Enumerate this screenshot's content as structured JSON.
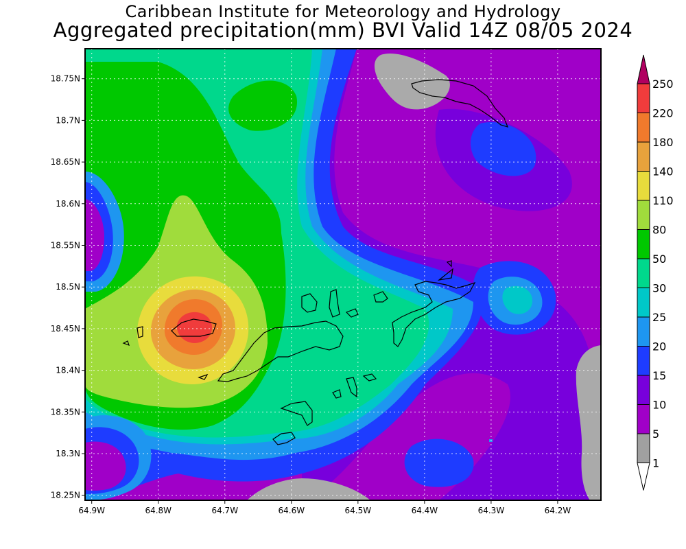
{
  "header": {
    "title_line1": "Caribbean Institute for Meteorology and Hydrology",
    "title_line2": "Aggregated precipitation(mm) BVI Valid 14Z 08/05 2024"
  },
  "axes": {
    "x_ticks": [
      "64.9W",
      "64.8W",
      "64.7W",
      "64.6W",
      "64.5W",
      "64.4W",
      "64.3W",
      "64.2W"
    ],
    "y_ticks": [
      "18.75N",
      "18.7N",
      "18.65N",
      "18.6N",
      "18.55N",
      "18.5N",
      "18.45N",
      "18.4N",
      "18.35N",
      "18.3N",
      "18.25N"
    ],
    "lon_range": [
      -64.91,
      -64.135
    ],
    "lat_range": [
      18.244,
      18.786
    ]
  },
  "colorbar": {
    "levels": [
      "250",
      "220",
      "180",
      "140",
      "110",
      "80",
      "50",
      "30",
      "25",
      "20",
      "15",
      "10",
      "5",
      "1"
    ],
    "colors": [
      "#b00060",
      "#f03c3c",
      "#f07a2c",
      "#e8a23c",
      "#e8dc3c",
      "#a0dc3c",
      "#00c800",
      "#00d88c",
      "#00c8c8",
      "#1e96f0",
      "#1e3cff",
      "#7800dc",
      "#a000c8",
      "#a0a0a0",
      "#ffffff"
    ]
  },
  "fills": {
    "gray": "#aaaaaa",
    "magenta": "#a000c8",
    "violet": "#7800dc",
    "blue": "#1e3cff",
    "sky": "#1e96f0",
    "cyan": "#00c8c8",
    "teal": "#00d88c",
    "green": "#00c800",
    "lime": "#a0dc3c",
    "yellow": "#e8dc3c",
    "gold": "#e8a23c",
    "orange": "#f07a2c",
    "red": "#f03c3c"
  }
}
